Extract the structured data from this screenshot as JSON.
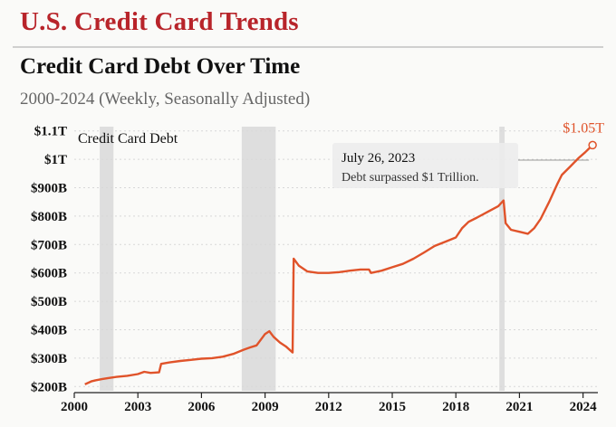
{
  "header": {
    "title": "U.S. Credit Card Trends"
  },
  "chart_data": {
    "type": "line",
    "title": "Credit Card Debt Over Time",
    "subtitle": "2000-2024 (Weekly, Seasonally Adjusted)",
    "series": [
      {
        "name": "Credit Card Debt",
        "color": "#e0532a",
        "points": [
          [
            2000.5,
            208
          ],
          [
            2000.8,
            218
          ],
          [
            2001.0,
            222
          ],
          [
            2001.3,
            226
          ],
          [
            2001.6,
            230
          ],
          [
            2002.0,
            234
          ],
          [
            2002.5,
            238
          ],
          [
            2003.0,
            244
          ],
          [
            2003.3,
            252
          ],
          [
            2003.6,
            248
          ],
          [
            2004.0,
            250
          ],
          [
            2004.1,
            280
          ],
          [
            2004.5,
            285
          ],
          [
            2005.0,
            290
          ],
          [
            2005.5,
            294
          ],
          [
            2006.0,
            298
          ],
          [
            2006.5,
            300
          ],
          [
            2007.0,
            305
          ],
          [
            2007.5,
            315
          ],
          [
            2008.0,
            330
          ],
          [
            2008.3,
            338
          ],
          [
            2008.6,
            345
          ],
          [
            2009.0,
            385
          ],
          [
            2009.2,
            395
          ],
          [
            2009.4,
            375
          ],
          [
            2009.7,
            355
          ],
          [
            2010.0,
            340
          ],
          [
            2010.3,
            320
          ],
          [
            2010.35,
            650
          ],
          [
            2010.6,
            625
          ],
          [
            2011.0,
            605
          ],
          [
            2011.5,
            600
          ],
          [
            2012.0,
            600
          ],
          [
            2012.5,
            603
          ],
          [
            2013.0,
            608
          ],
          [
            2013.5,
            612
          ],
          [
            2013.9,
            612
          ],
          [
            2014.0,
            600
          ],
          [
            2014.5,
            608
          ],
          [
            2015.0,
            620
          ],
          [
            2015.5,
            632
          ],
          [
            2016.0,
            650
          ],
          [
            2016.5,
            672
          ],
          [
            2017.0,
            695
          ],
          [
            2017.5,
            710
          ],
          [
            2018.0,
            725
          ],
          [
            2018.3,
            758
          ],
          [
            2018.6,
            780
          ],
          [
            2019.0,
            795
          ],
          [
            2019.5,
            815
          ],
          [
            2020.0,
            835
          ],
          [
            2020.25,
            855
          ],
          [
            2020.35,
            775
          ],
          [
            2020.6,
            752
          ],
          [
            2021.0,
            745
          ],
          [
            2021.4,
            738
          ],
          [
            2021.7,
            758
          ],
          [
            2022.0,
            790
          ],
          [
            2022.4,
            850
          ],
          [
            2022.8,
            915
          ],
          [
            2023.0,
            945
          ],
          [
            2023.4,
            975
          ],
          [
            2023.8,
            1005
          ],
          [
            2024.1,
            1025
          ],
          [
            2024.45,
            1050
          ]
        ]
      }
    ],
    "x_ticks": [
      "2000",
      "2003",
      "2006",
      "2009",
      "2012",
      "2015",
      "2018",
      "2021",
      "2024"
    ],
    "y_ticks": [
      "$200B",
      "$300B",
      "$400B",
      "$500B",
      "$600B",
      "$700B",
      "$800B",
      "$900B",
      "$1T",
      "$1.1T"
    ],
    "x_range": [
      2000,
      2024.7
    ],
    "y_range": [
      185,
      1115
    ],
    "shaded_periods": [
      [
        2001.2,
        2001.85
      ],
      [
        2007.9,
        2009.5
      ],
      [
        2020.05,
        2020.3
      ]
    ],
    "end_label": "$1.05T",
    "annotation": {
      "date": "July 26, 2023",
      "text": "Debt surpassed $1 Trillion."
    },
    "grid": "horizontal",
    "colors": {
      "line": "#e0532a",
      "shade": "#dedede",
      "grid": "#d8d8d8"
    }
  }
}
